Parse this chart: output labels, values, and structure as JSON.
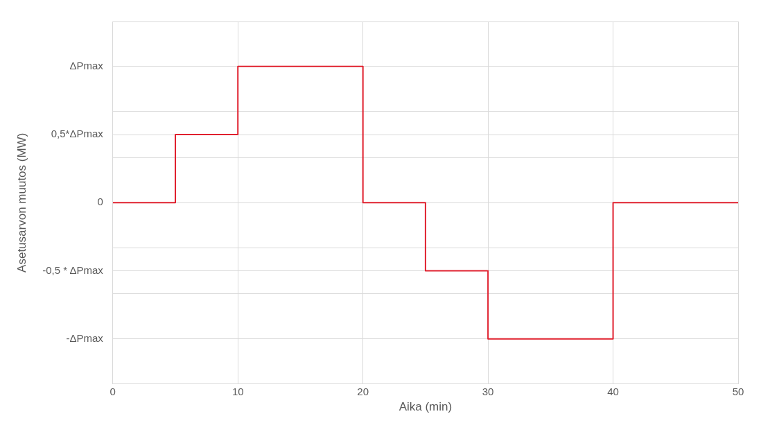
{
  "chart_data": {
    "type": "step",
    "xlabel": "Aika (min)",
    "ylabel": "Asetusarvon muutos (MW)",
    "x": [
      0,
      5,
      10,
      20,
      25,
      30,
      40,
      50
    ],
    "series": [
      {
        "color": "#e0202e",
        "values": [
          0,
          0.5,
          1,
          0,
          -0.5,
          -1,
          0,
          0
        ]
      }
    ],
    "xlim": [
      0,
      50
    ],
    "xticks": [
      0,
      10,
      20,
      30,
      40,
      50
    ],
    "ylim": [
      -1.33,
      1.33
    ],
    "yticks": [
      {
        "value": -1.33,
        "label": null
      },
      {
        "value": -1,
        "label": "-ΔPmax"
      },
      {
        "value": -0.67,
        "label": null
      },
      {
        "value": -0.5,
        "label": "-0,5 * ΔPmax"
      },
      {
        "value": -0.33,
        "label": null
      },
      {
        "value": 0,
        "label": "0"
      },
      {
        "value": 0.33,
        "label": null
      },
      {
        "value": 0.5,
        "label": "0,5*ΔPmax"
      },
      {
        "value": 0.67,
        "label": null
      },
      {
        "value": 1,
        "label": "ΔPmax"
      },
      {
        "value": 1.33,
        "label": null
      }
    ],
    "grid": true,
    "legend": false,
    "marker": "none",
    "line_style": "solid"
  }
}
